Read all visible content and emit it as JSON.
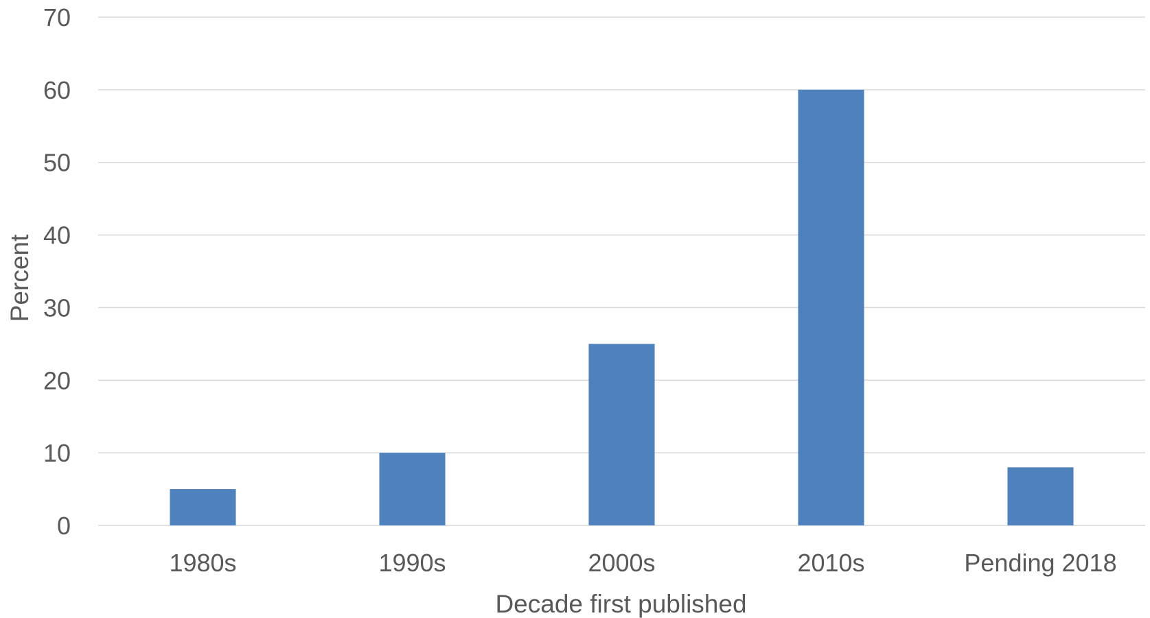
{
  "chart_data": {
    "type": "bar",
    "categories": [
      "1980s",
      "1990s",
      "2000s",
      "2010s",
      "Pending 2018"
    ],
    "values": [
      5,
      10,
      25,
      60,
      8
    ],
    "title": "",
    "xlabel": "Decade first published",
    "ylabel": "Percent",
    "ylim": [
      0,
      70
    ],
    "yticks": [
      0,
      10,
      20,
      30,
      40,
      50,
      60,
      70
    ],
    "grid": true,
    "legend": "none",
    "colors": {
      "bar": "#4f81bd",
      "gridline": "#d9d9d9",
      "text": "#595959"
    }
  }
}
